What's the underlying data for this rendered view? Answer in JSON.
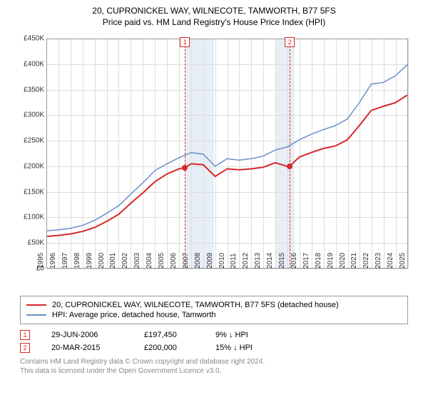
{
  "title": "20, CUPRONICKEL WAY, WILNECOTE, TAMWORTH, B77 5FS",
  "subtitle": "Price paid vs. HM Land Registry's House Price Index (HPI)",
  "colors": {
    "property": "#d62728",
    "hpi": "#6b8fc9",
    "band": "#e8eef5",
    "grid": "#dddddd",
    "text": "#333333"
  },
  "chart": {
    "type": "line",
    "xlim": [
      1995,
      2025
    ],
    "ylim": [
      0,
      450000
    ],
    "yticks": [
      0,
      50000,
      100000,
      150000,
      200000,
      250000,
      300000,
      350000,
      400000,
      450000
    ],
    "ytick_labels": [
      "£0",
      "£50K",
      "£100K",
      "£150K",
      "£200K",
      "£250K",
      "£300K",
      "£350K",
      "£400K",
      "£450K"
    ],
    "xticks": [
      1995,
      1996,
      1997,
      1998,
      1999,
      2000,
      2001,
      2002,
      2003,
      2004,
      2005,
      2006,
      2007,
      2008,
      2009,
      2010,
      2011,
      2012,
      2013,
      2014,
      2015,
      2016,
      2017,
      2018,
      2019,
      2020,
      2021,
      2022,
      2023,
      2024,
      2025
    ],
    "bands": [
      {
        "from": 2006.5,
        "to": 2008.9
      },
      {
        "from": 2014.0,
        "to": 2015.6
      }
    ],
    "vlines": [
      {
        "x": 2006.5,
        "label": "1",
        "color": "#d62728"
      },
      {
        "x": 2015.2,
        "label": "2",
        "color": "#d62728"
      }
    ],
    "series": [
      {
        "name": "property",
        "label": "20, CUPRONICKEL WAY, WILNECOTE, TAMWORTH, B77 5FS (detached house)",
        "color": "#d62728",
        "width": 2,
        "xs": [
          1995,
          1996,
          1997,
          1998,
          1999,
          2000,
          2001,
          2002,
          2003,
          2004,
          2005,
          2006,
          2006.5,
          2007,
          2008,
          2009,
          2010,
          2011,
          2012,
          2013,
          2014,
          2015,
          2015.2,
          2016,
          2017,
          2018,
          2019,
          2020,
          2021,
          2022,
          2023,
          2024,
          2025
        ],
        "ys": [
          62000,
          64000,
          67000,
          72000,
          80000,
          92000,
          106000,
          128000,
          148000,
          170000,
          185000,
          195000,
          197450,
          205000,
          203000,
          180000,
          195000,
          193000,
          195000,
          198000,
          207000,
          200000,
          200000,
          218000,
          227000,
          235000,
          240000,
          252000,
          280000,
          310000,
          318000,
          325000,
          340000
        ]
      },
      {
        "name": "hpi",
        "label": "HPI: Average price, detached house, Tamworth",
        "color": "#6b8fc9",
        "width": 1.5,
        "xs": [
          1995,
          1996,
          1997,
          1998,
          1999,
          2000,
          2001,
          2002,
          2003,
          2004,
          2005,
          2006,
          2007,
          2008,
          2009,
          2010,
          2011,
          2012,
          2013,
          2014,
          2015,
          2016,
          2017,
          2018,
          2019,
          2020,
          2021,
          2022,
          2023,
          2024,
          2025
        ],
        "ys": [
          73000,
          75000,
          78000,
          84000,
          94000,
          108000,
          123000,
          146000,
          168000,
          192000,
          205000,
          217000,
          227000,
          224000,
          200000,
          215000,
          212000,
          215000,
          220000,
          232000,
          238000,
          252000,
          263000,
          272000,
          280000,
          293000,
          325000,
          362000,
          365000,
          378000,
          400000
        ]
      }
    ],
    "points": [
      {
        "x": 2006.5,
        "y": 197450,
        "color": "#d62728"
      },
      {
        "x": 2015.2,
        "y": 200000,
        "color": "#d62728"
      }
    ]
  },
  "legend": [
    {
      "color": "#d62728",
      "label": "20, CUPRONICKEL WAY, WILNECOTE, TAMWORTH, B77 5FS (detached house)"
    },
    {
      "color": "#6b8fc9",
      "label": "HPI: Average price, detached house, Tamworth"
    }
  ],
  "sales": [
    {
      "n": "1",
      "color": "#d62728",
      "date": "29-JUN-2006",
      "price": "£197,450",
      "hpi": "9% ↓ HPI"
    },
    {
      "n": "2",
      "color": "#d62728",
      "date": "20-MAR-2015",
      "price": "£200,000",
      "hpi": "15% ↓ HPI"
    }
  ],
  "footer": {
    "line1": "Contains HM Land Registry data © Crown copyright and database right 2024.",
    "line2": "This data is licensed under the Open Government Licence v3.0."
  }
}
